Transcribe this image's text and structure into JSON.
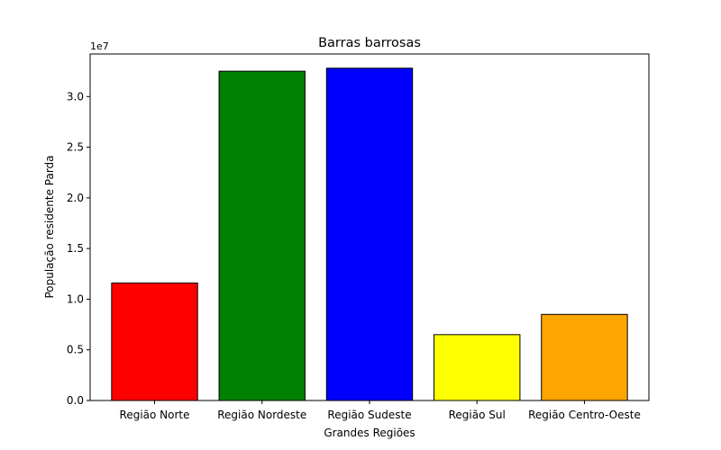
{
  "chart_data": {
    "type": "bar",
    "title": "Barras barrosas",
    "xlabel": "Grandes Regiões",
    "ylabel": "População residente Parda",
    "offset_label": "1e7",
    "categories": [
      "Região Norte",
      "Região Nordeste",
      "Região Sudeste",
      "Região Sul",
      "Região Centro-Oeste"
    ],
    "values": [
      11600000,
      32500000,
      32800000,
      6500000,
      8500000
    ],
    "colors": [
      "#ff0000",
      "#008000",
      "#0000ff",
      "#ffff00",
      "#ffa500"
    ],
    "edge_color": "#000000",
    "ylim": [
      0,
      34200000
    ],
    "yticks": [
      0,
      5000000,
      10000000,
      15000000,
      20000000,
      25000000,
      30000000
    ],
    "ytick_labels": [
      "0.0",
      "0.5",
      "1.0",
      "1.5",
      "2.0",
      "2.5",
      "3.0"
    ],
    "grid": false,
    "legend": "none"
  }
}
